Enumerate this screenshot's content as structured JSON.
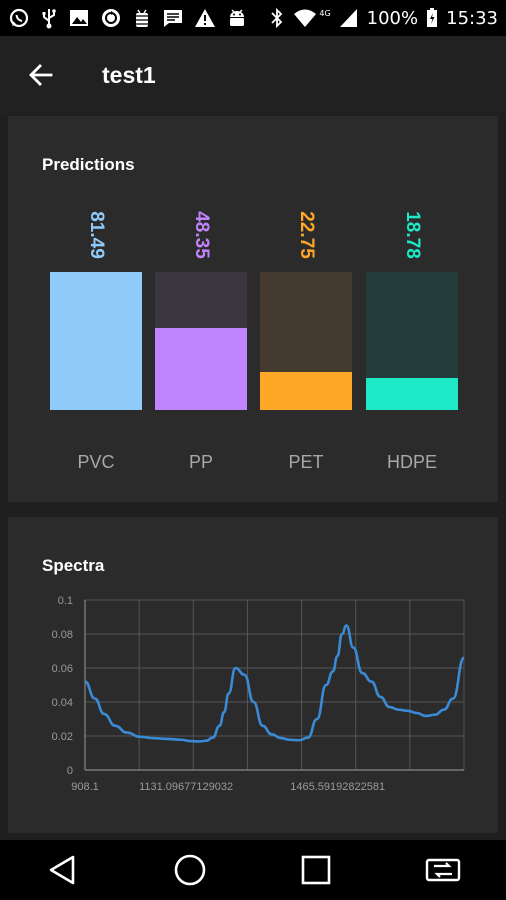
{
  "status_bar": {
    "battery": "100%",
    "time": "15:33",
    "network": "4G",
    "left_icons": [
      "whatsapp-icon",
      "usb-icon",
      "image-icon",
      "sync-icon",
      "android-debug-icon",
      "message-icon",
      "warning-icon",
      "android-icon"
    ],
    "right_icons": [
      "bluetooth-icon",
      "wifi-icon",
      "signal-icon",
      "battery-icon"
    ]
  },
  "app_bar": {
    "title": "test1",
    "back_icon": "arrow-left-icon"
  },
  "predictions": {
    "title": "Predictions",
    "bars": [
      {
        "label": "PVC",
        "value": "81.49",
        "fraction": 1.0,
        "color": "#90caf9",
        "bg": "#90caf9"
      },
      {
        "label": "PP",
        "value": "48.35",
        "fraction": 0.593,
        "color": "#c084fc",
        "bg": "#3c3640"
      },
      {
        "label": "PET",
        "value": "22.75",
        "fraction": 0.279,
        "color": "#ffa726",
        "bg": "#453a30"
      },
      {
        "label": "HDPE",
        "value": "18.78",
        "fraction": 0.23,
        "color": "#1de9c6",
        "bg": "#253d3a"
      }
    ]
  },
  "spectra": {
    "title": "Spectra",
    "x_tick_labels": [
      "908.1",
      "1131.09677129032",
      "1465.59192822581"
    ],
    "y_tick_labels": [
      "0",
      "0.02",
      "0.04",
      "0.06",
      "0.08",
      "0.1"
    ]
  },
  "chart_data": {
    "type": "line",
    "title": "Spectra",
    "xlabel": "",
    "ylabel": "",
    "xlim": [
      908.1,
      1744.3
    ],
    "ylim": [
      0,
      0.1
    ],
    "grid": true,
    "line_color": "#3a8ad6",
    "series": [
      {
        "x": [
          908.1,
          930,
          950,
          975,
          1000,
          1030,
          1060,
          1090,
          1120,
          1140,
          1160,
          1175,
          1190,
          1205,
          1215,
          1225,
          1240,
          1260,
          1280,
          1300,
          1320,
          1340,
          1360,
          1380,
          1400,
          1420,
          1440,
          1455,
          1465,
          1475,
          1485,
          1500,
          1520,
          1540,
          1560,
          1580,
          1600,
          1620,
          1640,
          1660,
          1680,
          1700,
          1720,
          1744.3
        ],
        "y": [
          0.052,
          0.042,
          0.033,
          0.026,
          0.022,
          0.0195,
          0.0187,
          0.0183,
          0.0178,
          0.017,
          0.0168,
          0.0172,
          0.019,
          0.026,
          0.034,
          0.045,
          0.06,
          0.056,
          0.04,
          0.026,
          0.021,
          0.0188,
          0.0178,
          0.0175,
          0.019,
          0.03,
          0.05,
          0.058,
          0.067,
          0.08,
          0.085,
          0.072,
          0.057,
          0.052,
          0.043,
          0.037,
          0.0355,
          0.0348,
          0.0335,
          0.0318,
          0.0325,
          0.0355,
          0.042,
          0.066
        ]
      }
    ]
  }
}
